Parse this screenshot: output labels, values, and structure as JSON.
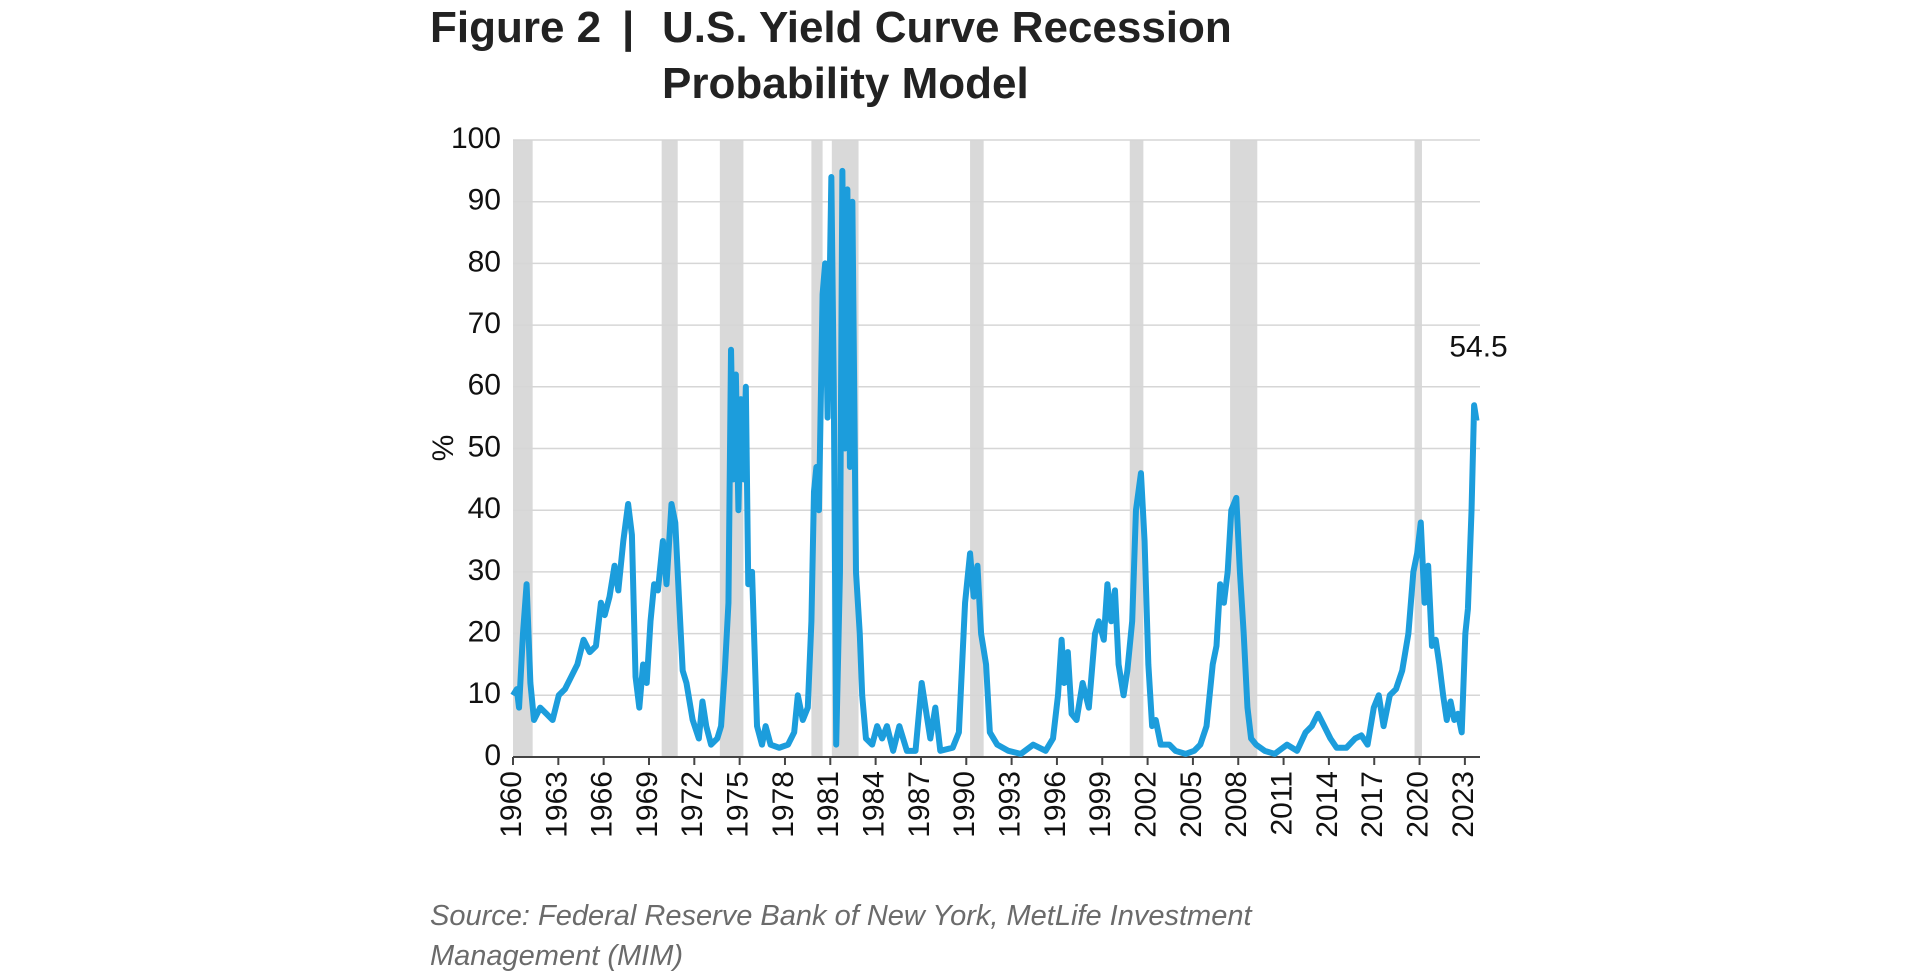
{
  "chart_data": {
    "type": "line",
    "figure_label": "Figure 2",
    "title": "U.S. Yield Curve Recession Probability Model",
    "ylabel": "%",
    "source": "Source: Federal Reserve Bank of New York, MetLife Investment Management (MIM)",
    "color": "#1c9ddc",
    "recession_color": "#d9d9d9",
    "grid": true,
    "xlim": [
      1960,
      2024
    ],
    "xticks": [
      1960,
      1963,
      1966,
      1969,
      1972,
      1975,
      1978,
      1981,
      1984,
      1987,
      1990,
      1993,
      1996,
      1999,
      2002,
      2005,
      2008,
      2011,
      2014,
      2017,
      2020,
      2023
    ],
    "ylim": [
      0,
      100
    ],
    "yticks": [
      0,
      10,
      20,
      30,
      40,
      50,
      60,
      70,
      80,
      90,
      100
    ],
    "recessions": [
      [
        1960.0,
        1961.3
      ],
      [
        1969.84,
        1970.9
      ],
      [
        1973.69,
        1975.25
      ],
      [
        1979.75,
        1980.49
      ],
      [
        1981.1,
        1982.87
      ],
      [
        1990.25,
        1991.15
      ],
      [
        2000.82,
        2001.72
      ],
      [
        2007.46,
        2009.26
      ],
      [
        2019.67,
        2020.16
      ]
    ],
    "x": [
      1960.0,
      1960.25,
      1960.4,
      1960.66,
      1960.9,
      1961.15,
      1961.39,
      1961.8,
      1962.21,
      1962.62,
      1963.03,
      1963.44,
      1963.85,
      1964.26,
      1964.67,
      1965.08,
      1965.49,
      1965.82,
      1966.07,
      1966.39,
      1966.72,
      1966.97,
      1967.3,
      1967.62,
      1967.87,
      1968.11,
      1968.36,
      1968.61,
      1968.85,
      1969.1,
      1969.34,
      1969.59,
      1969.92,
      1970.16,
      1970.49,
      1970.74,
      1970.98,
      1971.23,
      1971.48,
      1971.89,
      1972.3,
      1972.54,
      1972.79,
      1973.11,
      1973.52,
      1973.77,
      1974.02,
      1974.26,
      1974.43,
      1974.59,
      1974.75,
      1974.92,
      1975.08,
      1975.25,
      1975.41,
      1975.57,
      1975.82,
      1976.15,
      1976.48,
      1976.72,
      1977.05,
      1977.62,
      1978.2,
      1978.61,
      1978.85,
      1979.18,
      1979.51,
      1979.75,
      1979.92,
      1980.08,
      1980.25,
      1980.49,
      1980.66,
      1980.82,
      1981.07,
      1981.23,
      1981.39,
      1981.64,
      1981.8,
      1981.97,
      1982.13,
      1982.3,
      1982.46,
      1982.7,
      1982.95,
      1983.11,
      1983.36,
      1983.77,
      1984.1,
      1984.43,
      1984.75,
      1985.16,
      1985.57,
      1986.07,
      1986.64,
      1987.05,
      1987.3,
      1987.62,
      1987.95,
      1988.28,
      1989.1,
      1989.51,
      1989.92,
      1990.25,
      1990.49,
      1990.74,
      1990.98,
      1991.31,
      1991.56,
      1992.05,
      1992.79,
      1993.61,
      1994.43,
      1995.25,
      1995.74,
      1996.07,
      1996.31,
      1996.48,
      1996.72,
      1996.97,
      1997.3,
      1997.7,
      1998.11,
      1998.52,
      1998.77,
      1999.1,
      1999.34,
      1999.59,
      1999.84,
      2000.08,
      2000.41,
      2000.66,
      2000.98,
      2001.23,
      2001.56,
      2001.8,
      2002.05,
      2002.3,
      2002.54,
      2002.87,
      2003.44,
      2003.85,
      2004.51,
      2005.08,
      2005.49,
      2005.9,
      2006.31,
      2006.56,
      2006.8,
      2007.05,
      2007.3,
      2007.54,
      2007.87,
      2008.11,
      2008.36,
      2008.61,
      2008.85,
      2009.18,
      2009.75,
      2010.41,
      2011.23,
      2011.89,
      2012.46,
      2012.87,
      2013.28,
      2013.69,
      2014.1,
      2014.51,
      2015.16,
      2015.74,
      2016.15,
      2016.56,
      2016.97,
      2017.3,
      2017.62,
      2018.03,
      2018.44,
      2018.85,
      2019.26,
      2019.59,
      2019.84,
      2020.08,
      2020.33,
      2020.57,
      2020.82,
      2021.07,
      2021.31,
      2021.56,
      2021.8,
      2022.05,
      2022.3,
      2022.54,
      2022.79,
      2023.03,
      2023.2,
      2023.44,
      2023.61,
      2023.77
    ],
    "values": [
      10,
      11,
      8,
      20,
      28,
      12,
      6,
      8,
      7,
      6,
      10,
      11,
      13,
      15,
      19,
      17,
      18,
      25,
      23,
      26,
      31,
      27,
      35,
      41,
      36,
      13,
      8,
      15,
      12,
      22,
      28,
      27,
      35,
      28,
      41,
      38,
      26,
      14,
      12,
      6,
      3,
      9,
      5,
      2,
      3,
      5,
      14,
      25,
      66,
      45,
      62,
      40,
      58,
      45,
      60,
      28,
      30,
      5,
      2,
      5,
      2,
      1.5,
      2,
      4,
      10,
      6,
      8,
      22,
      43,
      47,
      40,
      75,
      80,
      55,
      94,
      60,
      2,
      30,
      95,
      50,
      92,
      47,
      90,
      30,
      20,
      10,
      3,
      2,
      5,
      3,
      5,
      1,
      5,
      1,
      1,
      12,
      8,
      3,
      8,
      1,
      1.5,
      4,
      25,
      33,
      26,
      31,
      20,
      15,
      4,
      2,
      1,
      0.5,
      2,
      1,
      3,
      10,
      19,
      12,
      17,
      7,
      6,
      12,
      8,
      20,
      22,
      19,
      28,
      22,
      27,
      15,
      10,
      14,
      22,
      40,
      46,
      35,
      15,
      5,
      6,
      2,
      2,
      1,
      0.5,
      1,
      2,
      5,
      15,
      18,
      28,
      25,
      30,
      40,
      42,
      30,
      20,
      8,
      3,
      2,
      1,
      0.5,
      2,
      1,
      4,
      5,
      7,
      5,
      3,
      1.5,
      1.5,
      3,
      3.5,
      2,
      8,
      10,
      5,
      10,
      11,
      14,
      20,
      30,
      33,
      38,
      25,
      31,
      18,
      19,
      15,
      10,
      6,
      9,
      6,
      7,
      4,
      20,
      24,
      40,
      57,
      54.5
    ]
  }
}
